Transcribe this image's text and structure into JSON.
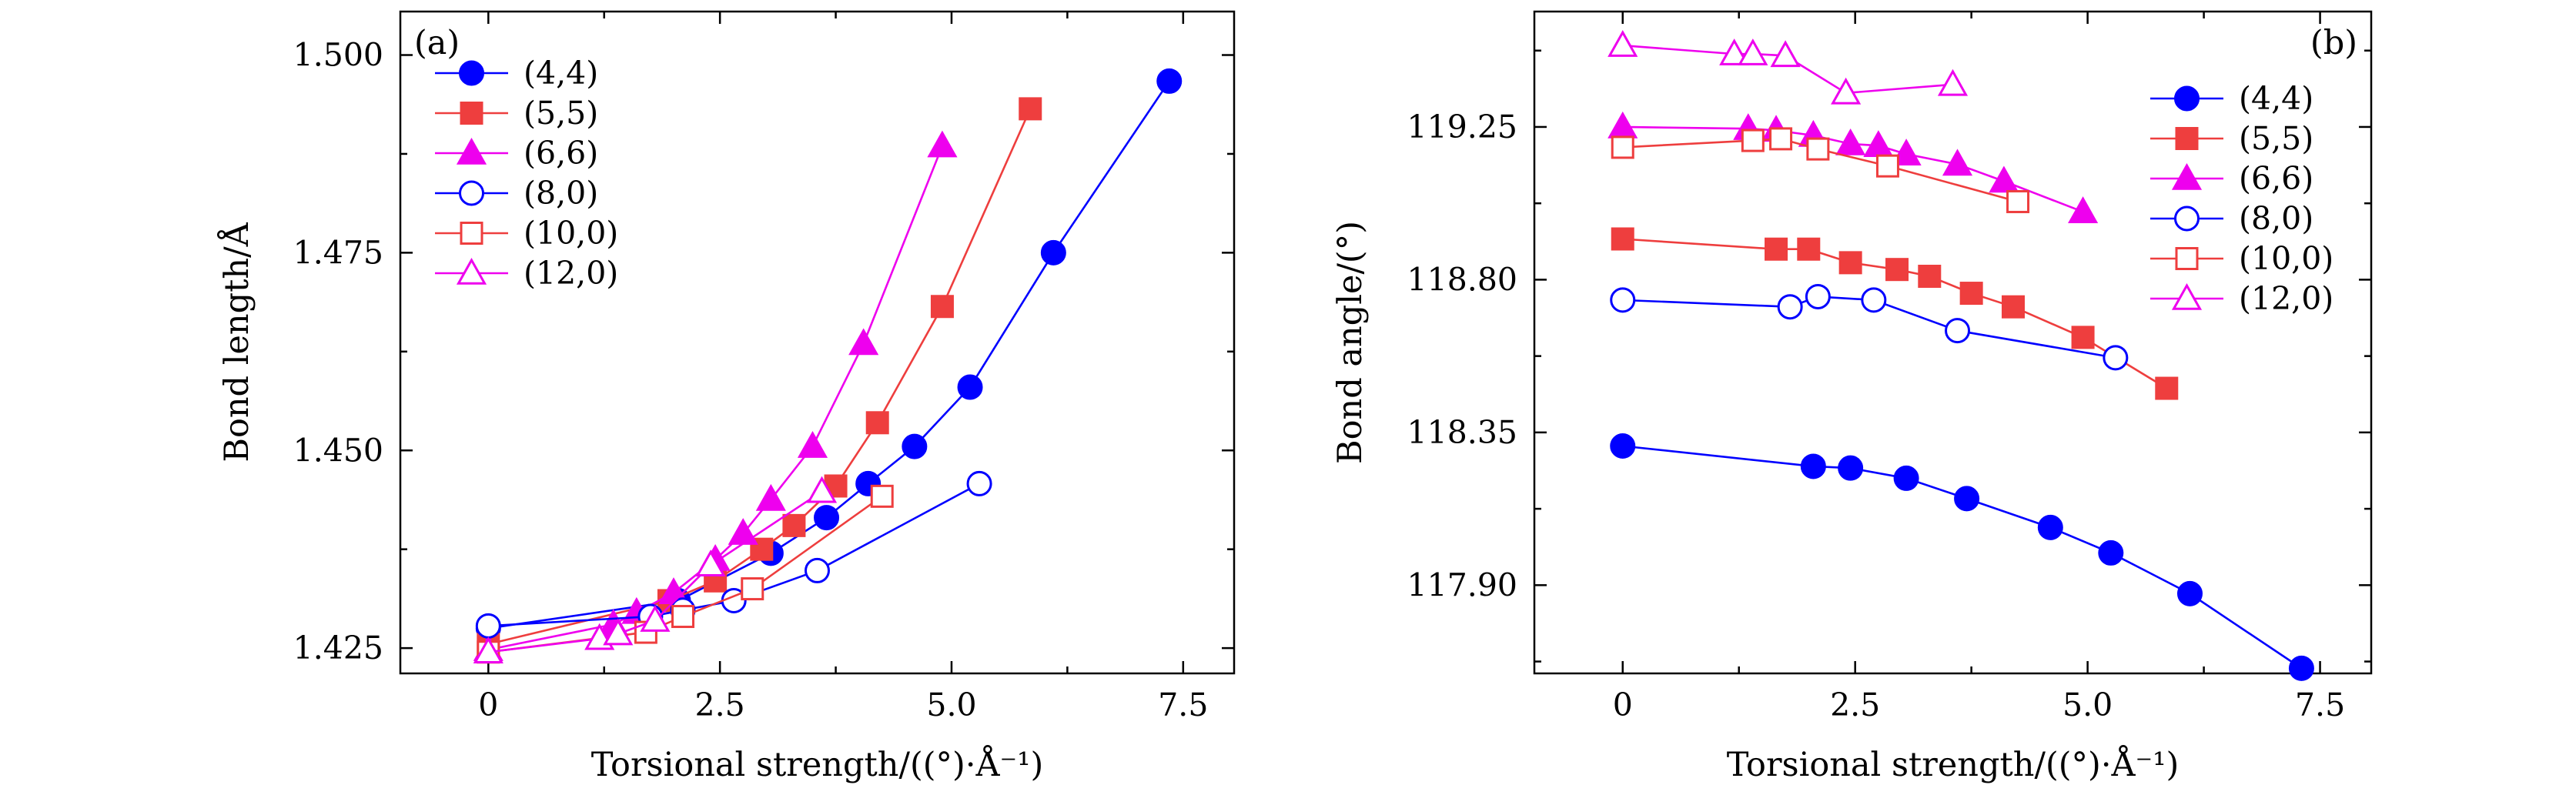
{
  "chart_data": [
    {
      "type": "line",
      "panel_label": "(a)",
      "xlabel": "Torsional strength/((°)·Å⁻¹)",
      "ylabel": "Bond length/Å",
      "xlim": [
        -0.95,
        8.05
      ],
      "ylim": [
        1.4218,
        1.5055
      ],
      "xticks": [
        0,
        2.5,
        5.0,
        7.5
      ],
      "xtick_labels": [
        "0",
        "2.5",
        "5.0",
        "7.5"
      ],
      "yticks": [
        1.425,
        1.45,
        1.475,
        1.5
      ],
      "ytick_labels": [
        "1.425",
        "1.450",
        "1.475",
        "1.500"
      ],
      "legend_position": "top-left",
      "series": [
        {
          "name": "(4,4)",
          "color": "#0000ff",
          "marker": "circle",
          "filled": true,
          "x": [
            0,
            2.05,
            3.05,
            3.65,
            4.1,
            4.6,
            5.2,
            6.1,
            7.35
          ],
          "y": [
            1.4275,
            1.431,
            1.437,
            1.4415,
            1.4458,
            1.4505,
            1.458,
            1.475,
            1.4967
          ]
        },
        {
          "name": "(5,5)",
          "color": "#ee3e3e",
          "marker": "square",
          "filled": true,
          "x": [
            0,
            1.95,
            2.45,
            2.95,
            3.3,
            3.75,
            4.2,
            4.9,
            5.85
          ],
          "y": [
            1.4255,
            1.431,
            1.4335,
            1.4375,
            1.4405,
            1.4455,
            1.4535,
            1.4682,
            1.4932
          ]
        },
        {
          "name": "(6,6)",
          "color": "#ee00ee",
          "marker": "triangle",
          "filled": true,
          "x": [
            0,
            1.35,
            1.6,
            2.0,
            2.45,
            2.75,
            3.05,
            3.5,
            4.05,
            4.9
          ],
          "y": [
            1.4248,
            1.428,
            1.4295,
            1.432,
            1.4362,
            1.4395,
            1.4438,
            1.4505,
            1.4635,
            1.4885
          ]
        },
        {
          "name": "(8,0)",
          "color": "#0000ff",
          "marker": "circle",
          "filled": false,
          "x": [
            0,
            1.75,
            2.1,
            2.65,
            3.55,
            5.3
          ],
          "y": [
            1.4278,
            1.429,
            1.4298,
            1.431,
            1.4348,
            1.4458
          ]
        },
        {
          "name": "(10,0)",
          "color": "#ee3e3e",
          "marker": "square",
          "filled": false,
          "x": [
            0,
            1.7,
            2.1,
            2.85,
            4.25
          ],
          "y": [
            1.4245,
            1.427,
            1.429,
            1.4325,
            1.4442
          ]
        },
        {
          "name": "(12,0)",
          "color": "#ee00ee",
          "marker": "triangle",
          "filled": false,
          "x": [
            0,
            1.2,
            1.4,
            1.8,
            2.4,
            3.6
          ],
          "y": [
            1.4245,
            1.4262,
            1.4268,
            1.4285,
            1.4355,
            1.4448
          ]
        }
      ]
    },
    {
      "type": "line",
      "panel_label": "(b)",
      "xlabel": "Torsional strength/((°)·Å⁻¹)",
      "ylabel": "Bond angle/(°)",
      "xlim": [
        -0.95,
        8.05
      ],
      "ylim": [
        117.64,
        119.59
      ],
      "xticks": [
        0,
        2.5,
        5.0,
        7.5
      ],
      "xtick_labels": [
        "0",
        "2.5",
        "5.0",
        "7.5"
      ],
      "yticks": [
        117.9,
        118.35,
        118.8,
        119.25
      ],
      "ytick_labels": [
        "117.90",
        "118.35",
        "118.80",
        "119.25"
      ],
      "legend_position": "top-right",
      "series": [
        {
          "name": "(4,4)",
          "color": "#0000ff",
          "marker": "circle",
          "filled": true,
          "x": [
            0,
            2.05,
            2.45,
            3.05,
            3.7,
            4.6,
            5.25,
            6.1,
            7.3
          ],
          "y": [
            118.31,
            118.25,
            118.245,
            118.215,
            118.155,
            118.07,
            117.995,
            117.875,
            117.655
          ]
        },
        {
          "name": "(5,5)",
          "color": "#ee3e3e",
          "marker": "square",
          "filled": true,
          "x": [
            0,
            1.65,
            2.0,
            2.45,
            2.95,
            3.3,
            3.75,
            4.2,
            4.95,
            5.85
          ],
          "y": [
            118.92,
            118.89,
            118.89,
            118.85,
            118.83,
            118.81,
            118.76,
            118.72,
            118.63,
            118.48
          ]
        },
        {
          "name": "(6,6)",
          "color": "#ee00ee",
          "marker": "triangle",
          "filled": true,
          "x": [
            0,
            1.35,
            1.65,
            2.05,
            2.45,
            2.75,
            3.05,
            3.6,
            4.1,
            4.95
          ],
          "y": [
            119.25,
            119.245,
            119.24,
            119.225,
            119.2,
            119.195,
            119.17,
            119.14,
            119.09,
            119.0
          ]
        },
        {
          "name": "(8,0)",
          "color": "#0000ff",
          "marker": "circle",
          "filled": false,
          "x": [
            0,
            1.8,
            2.1,
            2.7,
            3.6,
            5.3
          ],
          "y": [
            118.74,
            118.72,
            118.75,
            118.74,
            118.65,
            118.57
          ]
        },
        {
          "name": "(10,0)",
          "color": "#ee3e3e",
          "marker": "square",
          "filled": false,
          "x": [
            0,
            1.4,
            1.7,
            2.1,
            2.85,
            4.25
          ],
          "y": [
            119.19,
            119.21,
            119.215,
            119.185,
            119.135,
            119.03
          ]
        },
        {
          "name": "(12,0)",
          "color": "#ee00ee",
          "marker": "triangle",
          "filled": false,
          "x": [
            0,
            1.2,
            1.4,
            1.75,
            2.4,
            3.55
          ],
          "y": [
            119.49,
            119.465,
            119.465,
            119.46,
            119.35,
            119.375
          ]
        }
      ]
    }
  ]
}
